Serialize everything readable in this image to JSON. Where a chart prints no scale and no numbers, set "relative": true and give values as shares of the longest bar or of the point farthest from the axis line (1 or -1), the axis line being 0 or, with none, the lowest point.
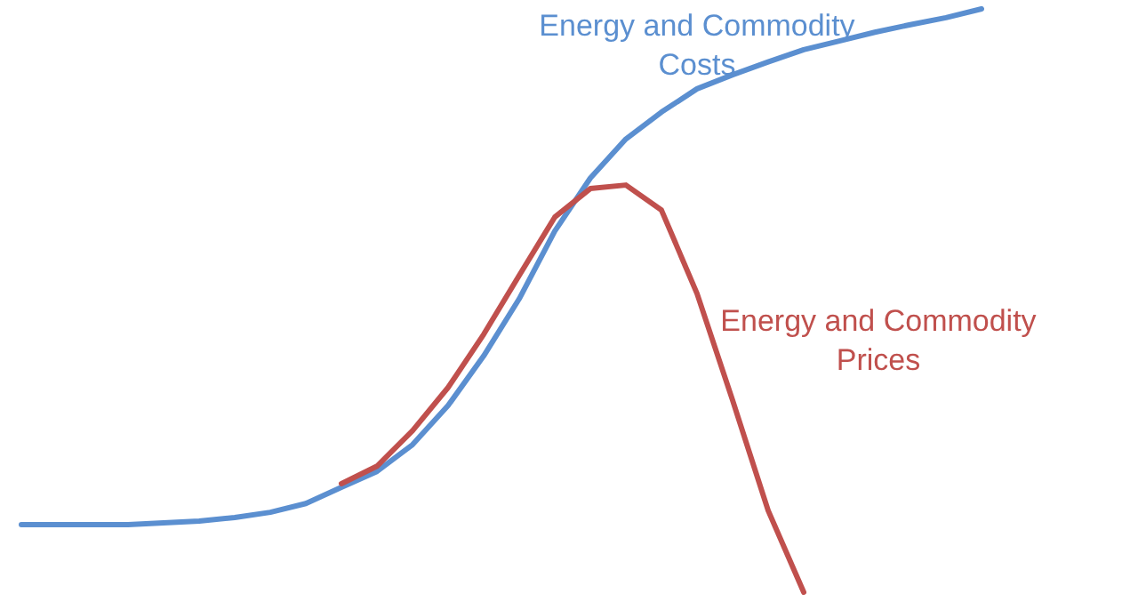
{
  "chart_data": {
    "type": "line",
    "relative": true,
    "marker": "none",
    "line_style": "solid",
    "categories": [
      null,
      null,
      null,
      null,
      null,
      null,
      null,
      null,
      null,
      null,
      null,
      null,
      null,
      null,
      null,
      null,
      null,
      null,
      null,
      null,
      null,
      null,
      null,
      null,
      null,
      null,
      null,
      null
    ],
    "series": [
      {
        "name": "Energy and Commodity Costs",
        "color": "#5b8fd0",
        "values": [
          0.116,
          0.116,
          0.116,
          0.116,
          0.119,
          0.122,
          0.128,
          0.137,
          0.152,
          0.18,
          0.207,
          0.253,
          0.32,
          0.405,
          0.503,
          0.619,
          0.71,
          0.777,
          0.823,
          0.863,
          0.887,
          0.909,
          0.93,
          0.945,
          0.96,
          0.973,
          0.985,
          1
        ]
      },
      {
        "name": "Energy and Commodity Prices",
        "color": "#c0504d",
        "values": [
          null,
          null,
          null,
          null,
          null,
          null,
          null,
          null,
          null,
          0.186,
          0.216,
          0.277,
          0.351,
          0.442,
          0.543,
          0.643,
          0.692,
          0.698,
          0.655,
          0.512,
          0.329,
          0.14,
          0,
          null,
          null,
          null,
          null,
          null
        ]
      }
    ]
  }
}
